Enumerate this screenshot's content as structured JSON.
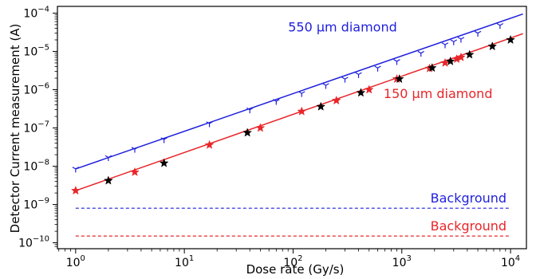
{
  "chart_data": {
    "type": "scatter",
    "xlabel": "Dose rate (Gy/s)",
    "ylabel": "Detector Current measurement (A)",
    "xscale": "log",
    "yscale": "log",
    "xlim": [
      0.68,
      14000
    ],
    "ylim": [
      7e-11,
      0.00015
    ],
    "grid": false,
    "x_ticks": [
      {
        "value": 1,
        "base": "10",
        "exp": "0"
      },
      {
        "value": 10,
        "base": "10",
        "exp": "1"
      },
      {
        "value": 100,
        "base": "10",
        "exp": "2"
      },
      {
        "value": 1000,
        "base": "10",
        "exp": "3"
      },
      {
        "value": 10000,
        "base": "10",
        "exp": "4"
      }
    ],
    "y_ticks": [
      {
        "value": 1e-10,
        "base": "10",
        "exp": "−10"
      },
      {
        "value": 1e-09,
        "base": "10",
        "exp": "−9"
      },
      {
        "value": 1e-08,
        "base": "10",
        "exp": "−8"
      },
      {
        "value": 1e-07,
        "base": "10",
        "exp": "−7"
      },
      {
        "value": 1e-06,
        "base": "10",
        "exp": "−6"
      },
      {
        "value": 1e-05,
        "base": "10",
        "exp": "−5"
      },
      {
        "value": 0.0001,
        "base": "10",
        "exp": "−4"
      }
    ],
    "series": [
      {
        "name": "550 µm diamond",
        "color": "#1f1fdc",
        "marker": "tri-down",
        "fit": {
          "x": [
            1,
            13000
          ],
          "y": [
            8.5e-09,
            9.5e-05
          ]
        },
        "x": [
          1,
          2,
          3.5,
          6.5,
          17,
          40,
          70,
          120,
          200,
          300,
          400,
          600,
          900,
          1500,
          2500,
          3000,
          3500,
          5000,
          8000
        ],
        "y": [
          8.5e-09,
          1.7e-08,
          2.8e-08,
          5e-08,
          1.3e-07,
          3e-07,
          5e-07,
          8e-07,
          1.3e-06,
          1.9e-06,
          2.5e-06,
          3.7e-06,
          5.5e-06,
          9e-06,
          1.5e-05,
          1.8e-05,
          2.1e-05,
          3e-05,
          4.8e-05
        ]
      },
      {
        "name": "150 µm diamond",
        "color": "#e8262a",
        "marker": "star",
        "fit": {
          "x": [
            1,
            13000
          ],
          "y": [
            2.3e-09,
            2.9e-05
          ]
        },
        "x": [
          1,
          3.5,
          17,
          50,
          120,
          250,
          500,
          900,
          1800,
          2500,
          3200,
          3500
        ],
        "y": [
          2.3e-09,
          7e-09,
          3.6e-08,
          1e-07,
          2.7e-07,
          5.2e-07,
          1e-06,
          1.9e-06,
          3.6e-06,
          5e-06,
          6.3e-06,
          7e-06
        ]
      },
      {
        "name": "black markers",
        "color": "#000000",
        "marker": "star",
        "x": [
          2,
          6.5,
          38,
          180,
          420,
          950,
          1900,
          2800,
          4200,
          6800,
          10000
        ],
        "y": [
          4.2e-09,
          1.2e-08,
          7.5e-08,
          3.6e-07,
          8.3e-07,
          1.9e-06,
          3.7e-06,
          5.5e-06,
          8.2e-06,
          1.35e-05,
          2e-05
        ]
      }
    ],
    "backgrounds": [
      {
        "label": "Background",
        "color": "#1f1fdc",
        "value": 8e-10,
        "x_range": [
          1,
          10000
        ]
      },
      {
        "label": "Background",
        "color": "#e8262a",
        "value": 1.5e-10,
        "x_range": [
          1,
          10000
        ]
      }
    ],
    "annotations": [
      {
        "text": "550 µm diamond",
        "color": "#1f1fdc",
        "x": 90,
        "y": 3.3e-05
      },
      {
        "text": "150 µm diamond",
        "color": "#e8262a",
        "x": 680,
        "y": 6e-07
      }
    ]
  }
}
